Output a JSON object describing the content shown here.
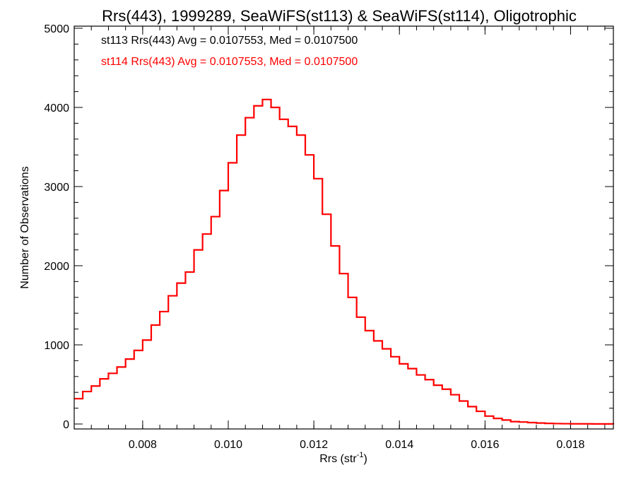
{
  "chart_data": {
    "type": "line",
    "title": "Rrs(443), 1999289, SeaWiFS(st113) & SeaWiFS(st114), Oligotrophic",
    "xlabel_main": "Rrs (str",
    "xlabel_sup": "-1",
    "xlabel_close": ")",
    "ylabel": "Number of Observations",
    "xlim": [
      0.0064,
      0.019
    ],
    "ylim": [
      0,
      5000
    ],
    "x_ticks": [
      0.008,
      0.01,
      0.012,
      0.014,
      0.016,
      0.018
    ],
    "x_tick_labels": [
      "0.008",
      "0.010",
      "0.012",
      "0.014",
      "0.016",
      "0.018"
    ],
    "y_ticks": [
      0,
      1000,
      2000,
      3000,
      4000,
      5000
    ],
    "y_tick_labels": [
      "0",
      "1000",
      "2000",
      "3000",
      "4000",
      "5000"
    ],
    "grid": false,
    "annotations": [
      {
        "text": "st113 Rrs(443) Avg = 0.0107553, Med = 0.0107500",
        "color": "#000000"
      },
      {
        "text": "st114 Rrs(443) Avg = 0.0107553, Med = 0.0107500",
        "color": "#ff0000"
      }
    ],
    "series": [
      {
        "color": "#ff0000",
        "x": [
          0.0064,
          0.0066,
          0.0068,
          0.007,
          0.0072,
          0.0074,
          0.0076,
          0.0078,
          0.008,
          0.0082,
          0.0084,
          0.0086,
          0.0088,
          0.009,
          0.0092,
          0.0094,
          0.0096,
          0.0098,
          0.01,
          0.0102,
          0.0104,
          0.0106,
          0.0108,
          0.011,
          0.0112,
          0.0114,
          0.0116,
          0.0118,
          0.012,
          0.0122,
          0.0124,
          0.0126,
          0.0128,
          0.013,
          0.0132,
          0.0134,
          0.0136,
          0.0138,
          0.014,
          0.0142,
          0.0144,
          0.0146,
          0.0148,
          0.015,
          0.0152,
          0.0154,
          0.0156,
          0.0158,
          0.016,
          0.0162,
          0.0164,
          0.0166,
          0.0168,
          0.017,
          0.0172,
          0.0174,
          0.0176,
          0.0178,
          0.018,
          0.0185,
          0.019
        ],
        "y": [
          320,
          410,
          480,
          570,
          640,
          720,
          820,
          930,
          1060,
          1250,
          1420,
          1620,
          1780,
          1920,
          2200,
          2400,
          2620,
          2950,
          3300,
          3650,
          3870,
          4020,
          4100,
          4000,
          3850,
          3760,
          3650,
          3400,
          3100,
          2650,
          2250,
          1900,
          1600,
          1350,
          1180,
          1050,
          950,
          850,
          760,
          700,
          620,
          560,
          490,
          440,
          370,
          290,
          220,
          160,
          100,
          70,
          50,
          30,
          25,
          18,
          12,
          8,
          5,
          4,
          2,
          1,
          0
        ]
      }
    ]
  }
}
